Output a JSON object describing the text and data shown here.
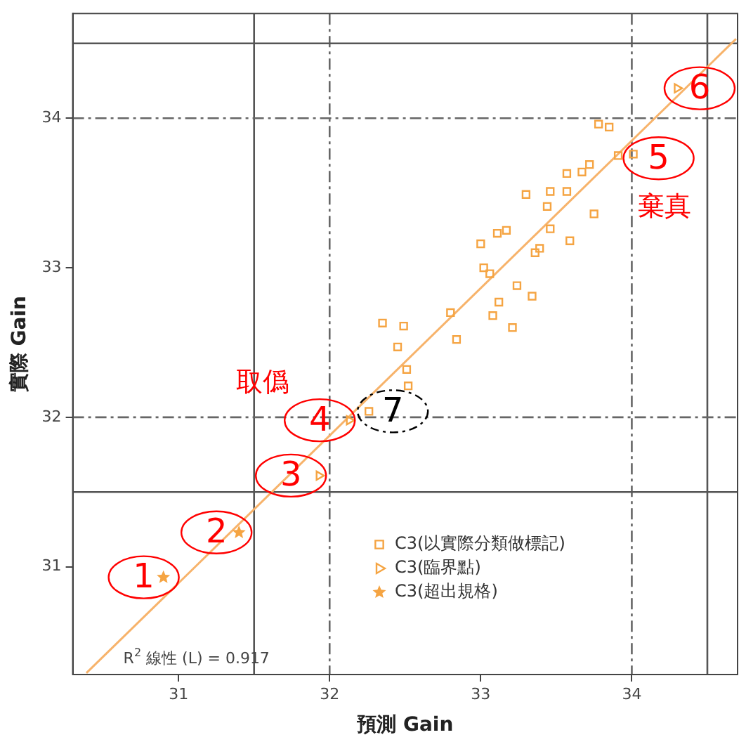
{
  "chart_data": {
    "type": "scatter",
    "xlabel": "預測 Gain",
    "ylabel": "實際 Gain",
    "xlim": [
      30.3,
      34.7
    ],
    "ylim": [
      30.28,
      34.7
    ],
    "xticks": [
      31,
      32,
      33,
      34
    ],
    "yticks": [
      31,
      32,
      33,
      34
    ],
    "grid": false,
    "legend": "bottom right",
    "series": [
      {
        "name": "C3(以實際分類做標記)",
        "color": "#f5a442",
        "marker": "square",
        "x": [
          33.78,
          33.85,
          33.91,
          34.01,
          33.72,
          33.67,
          33.57,
          33.57,
          33.46,
          33.3,
          33.44,
          33.75,
          33.46,
          33.17,
          33.11,
          33.0,
          33.59,
          33.39,
          33.36,
          33.02,
          33.06,
          33.24,
          33.34,
          33.12,
          33.08,
          33.21,
          32.8,
          32.84,
          32.35,
          32.49,
          32.45,
          32.51,
          32.52,
          32.26
        ],
        "values": [
          33.96,
          33.94,
          33.75,
          33.76,
          33.69,
          33.64,
          33.63,
          33.51,
          33.51,
          33.49,
          33.41,
          33.36,
          33.26,
          33.25,
          33.23,
          33.16,
          33.18,
          33.13,
          33.1,
          33.0,
          32.96,
          32.88,
          32.81,
          32.77,
          32.68,
          32.6,
          32.7,
          32.52,
          32.63,
          32.61,
          32.47,
          32.32,
          32.21,
          32.04
        ]
      },
      {
        "name": "C3(臨界點)",
        "color": "#f5a442",
        "marker": "triangle",
        "x": [
          34.3,
          31.93,
          32.13
        ],
        "values": [
          34.2,
          31.61,
          31.98
        ]
      },
      {
        "name": "C3(超出規格)",
        "color": "#f5a442",
        "marker": "star",
        "x": [
          30.9,
          31.4
        ],
        "values": [
          30.93,
          31.23
        ]
      },
      {
        "type": "line",
        "color": "#f7b36b",
        "marker": "none",
        "line_style": "solid",
        "x": [
          30.39,
          34.69
        ],
        "values": [
          30.29,
          34.53
        ]
      }
    ],
    "ref_lines": [
      {
        "axis": "x",
        "value": 31.5,
        "color": "#555555",
        "line_style": "solid"
      },
      {
        "axis": "x",
        "value": 34.5,
        "color": "#555555",
        "line_style": "solid"
      },
      {
        "axis": "x",
        "value": 32,
        "color": "#666666",
        "line_style": "dashed"
      },
      {
        "axis": "x",
        "value": 34,
        "color": "#666666",
        "line_style": "dashed"
      },
      {
        "axis": "y",
        "value": 31.5,
        "color": "#555555",
        "line_style": "solid"
      },
      {
        "axis": "y",
        "value": 34.5,
        "color": "#555555",
        "line_style": "solid"
      },
      {
        "axis": "y",
        "value": 32,
        "color": "#666666",
        "line_style": "dashed"
      },
      {
        "axis": "y",
        "value": 34,
        "color": "#666666",
        "line_style": "dashed"
      }
    ],
    "annotations": [
      {
        "text": "1",
        "x": 30.9,
        "y": 30.93
      },
      {
        "text": "2",
        "x": 31.4,
        "y": 31.23
      },
      {
        "text": "3",
        "x": 31.93,
        "y": 31.61
      },
      {
        "text": "4",
        "x": 32.13,
        "y": 31.98
      },
      {
        "text": "5",
        "x": 34.01,
        "y": 33.76
      },
      {
        "text": "6",
        "x": 34.3,
        "y": 34.2
      },
      {
        "text": "7",
        "x": 32.26,
        "y": 32.04
      },
      "取僞",
      "棄真",
      "R$^{2}$ 線性 (L) = 0.917"
    ]
  }
}
